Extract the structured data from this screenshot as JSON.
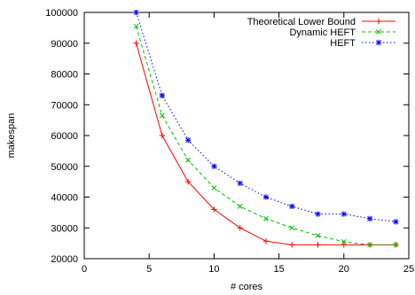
{
  "chart_data": {
    "type": "line",
    "title": "",
    "xlabel": "# cores",
    "ylabel": "makespan",
    "xlim": [
      0,
      25
    ],
    "ylim": [
      20000,
      100000
    ],
    "xticks": [
      0,
      5,
      10,
      15,
      20,
      25
    ],
    "yticks": [
      20000,
      30000,
      40000,
      50000,
      60000,
      70000,
      80000,
      90000,
      100000
    ],
    "x": [
      4,
      6,
      8,
      10,
      12,
      14,
      16,
      18,
      20,
      22,
      24
    ],
    "grid": false,
    "legend": "top-right",
    "series": [
      {
        "name": "Theoretical Lower Bound",
        "color": "#ff0000",
        "dash": "solid",
        "marker": "plus",
        "values": [
          90000,
          60000,
          45000,
          36000,
          30000,
          25700,
          24500,
          24500,
          24500,
          24500,
          24500
        ]
      },
      {
        "name": "Dynamic HEFT",
        "color": "#00c000",
        "dash": "dashed",
        "marker": "x",
        "values": [
          95500,
          66500,
          52000,
          43000,
          37000,
          33000,
          30000,
          27500,
          25500,
          24500,
          24500
        ]
      },
      {
        "name": "HEFT",
        "color": "#0000ff",
        "dash": "dotted",
        "marker": "star",
        "values": [
          100000,
          73000,
          58500,
          50000,
          44500,
          40000,
          37000,
          34500,
          34500,
          33000,
          32000
        ]
      }
    ]
  }
}
